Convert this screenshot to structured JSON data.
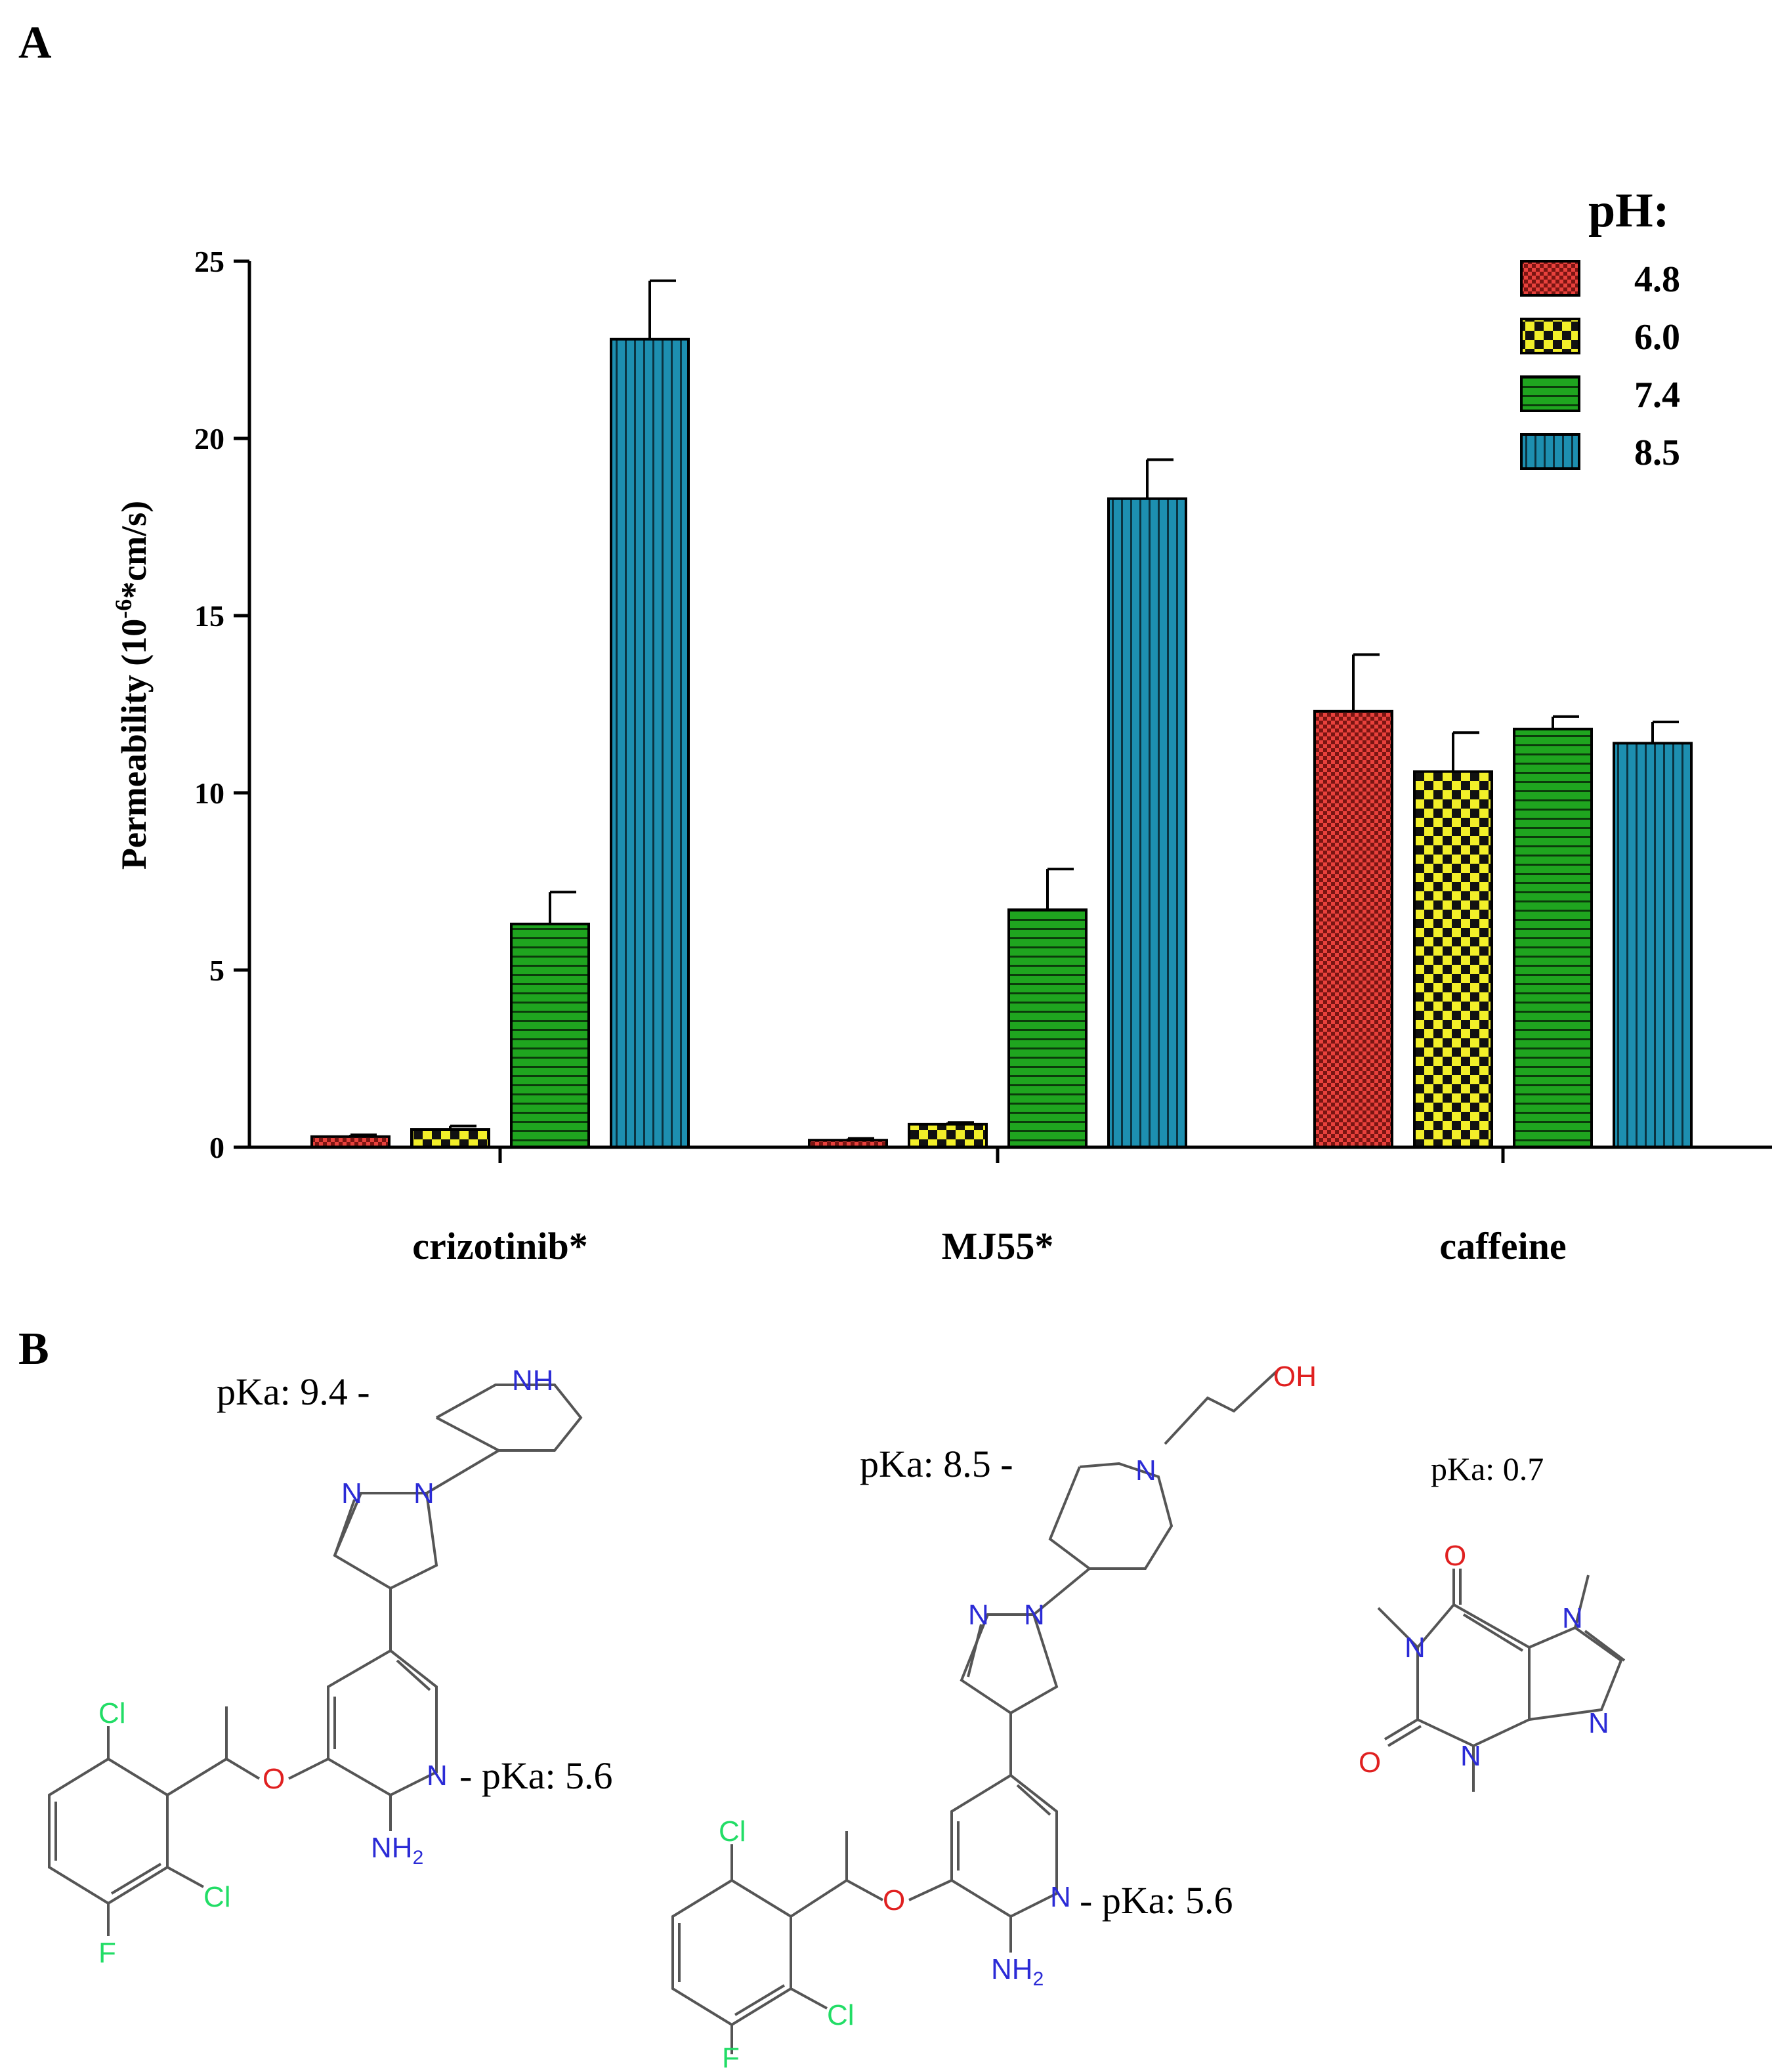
{
  "panels": {
    "a_label": "A",
    "b_label": "B"
  },
  "chart_data": {
    "type": "bar",
    "title": "",
    "xlabel": "",
    "ylabel": "Permeability (10",
    "ylabel_sup": "-6",
    "ylabel_tail": "*cm/s)",
    "ylim": [
      0,
      25
    ],
    "yticks": [
      0,
      5,
      10,
      15,
      20,
      25
    ],
    "grid": false,
    "legend_position": "top-right",
    "legend_title": "pH:",
    "categories": [
      "crizotinib*",
      "MJ55*",
      "caffeine"
    ],
    "series": [
      {
        "name": "4.8",
        "color": "#e8413c",
        "pattern": "checker-fine",
        "values": [
          0.3,
          0.2,
          12.3
        ],
        "errors": [
          0.05,
          0.05,
          1.6
        ]
      },
      {
        "name": "6.0",
        "color": "#f2ef29",
        "pattern": "checker-coarse",
        "values": [
          0.5,
          0.65,
          10.6
        ],
        "errors": [
          0.1,
          0.05,
          1.1
        ]
      },
      {
        "name": "7.4",
        "color": "#1fa51f",
        "pattern": "horizontal-lines",
        "values": [
          6.3,
          6.7,
          11.8
        ],
        "errors": [
          0.9,
          1.15,
          0.35
        ]
      },
      {
        "name": "8.5",
        "color": "#1d8fb0",
        "pattern": "vertical-lines",
        "values": [
          22.8,
          18.3,
          11.4
        ],
        "errors": [
          1.65,
          1.1,
          0.6
        ]
      }
    ]
  },
  "structures": {
    "crizotinib": {
      "pka_piperidine": "pKa: 9.4 -",
      "pka_pyridine": "- pKa: 5.6",
      "atoms": {
        "nh": "NH",
        "n": "N",
        "o": "O",
        "nh2": "NH",
        "sub2": "2",
        "cl": "Cl",
        "f": "F"
      }
    },
    "mj55": {
      "pka_piperidine": "pKa: 8.5 -",
      "pka_pyridine": "- pKa: 5.6",
      "atoms": {
        "oh": "OH",
        "n": "N",
        "o": "O",
        "nh2": "NH",
        "sub2": "2",
        "cl": "Cl",
        "f": "F"
      }
    },
    "caffeine": {
      "pka": "pKa: 0.7",
      "atoms": {
        "n": "N",
        "o": "O"
      }
    }
  }
}
